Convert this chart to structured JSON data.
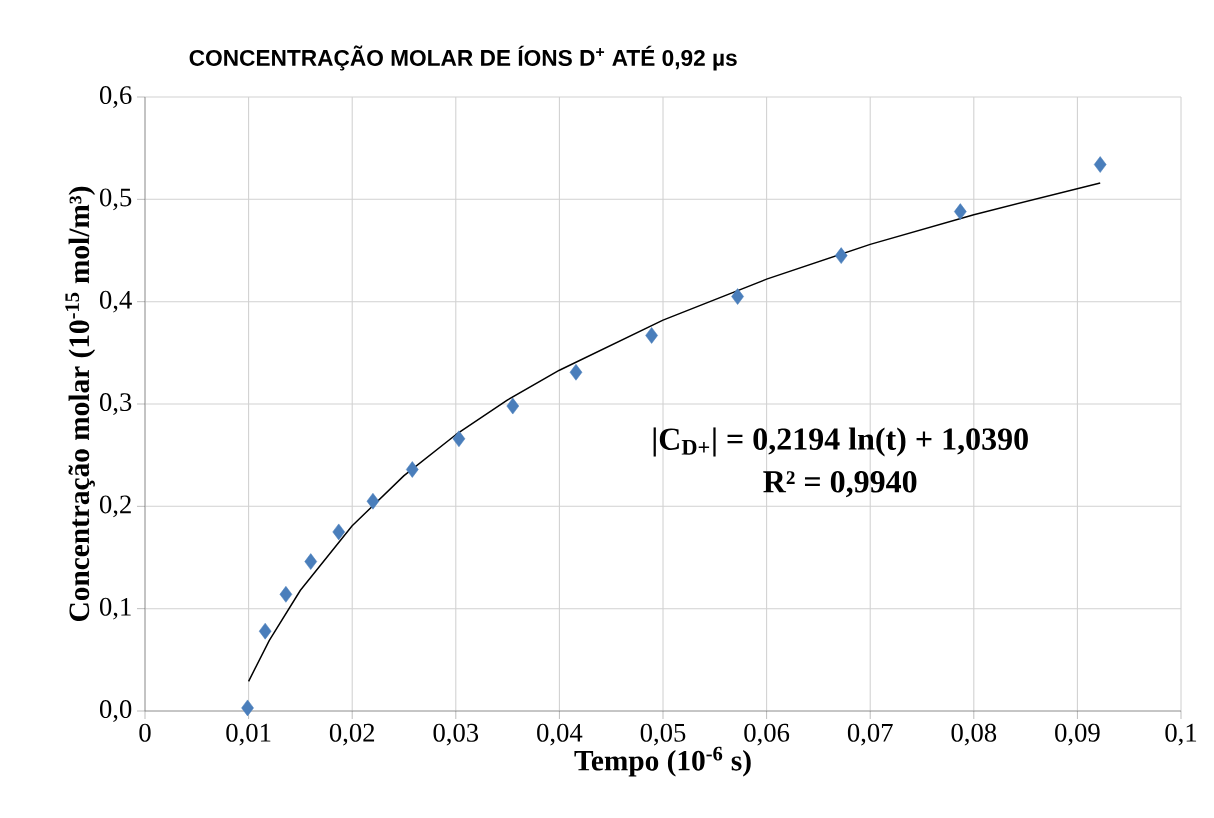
{
  "chart_data": {
    "type": "scatter",
    "title": "CONCENTRAÇÃO MOLAR DE ÍONS D$^{+}$ ATÉ 0,92 µs",
    "xlabel": "Tempo (10$^{-6}$ s)",
    "ylabel": "Concentração molar (10$^{-15}$ mol/m³)",
    "annotations": [
      "|C$_{D+}$| = 0,2194 ln(t) + 1,0390",
      "R² = 0,9940"
    ],
    "series": [
      {
        "color": "#4a7ebb",
        "marker": "diamond",
        "x": [
          0.0099,
          0.0116,
          0.0136,
          0.016,
          0.0187,
          0.022,
          0.0258,
          0.0303,
          0.0355,
          0.0416,
          0.0489,
          0.0572,
          0.0672,
          0.0787,
          0.0922
        ],
        "values": [
          0.003,
          0.078,
          0.114,
          0.146,
          0.175,
          0.205,
          0.236,
          0.266,
          0.298,
          0.331,
          0.367,
          0.405,
          0.445,
          0.488,
          0.534
        ]
      },
      {
        "type": "line",
        "color": "#000000",
        "marker": "none",
        "x": [
          0.01,
          0.012,
          0.015,
          0.02,
          0.025,
          0.03,
          0.035,
          0.04,
          0.05,
          0.06,
          0.07,
          0.08,
          0.0922
        ],
        "values": [
          0.029,
          0.069,
          0.118,
          0.181,
          0.23,
          0.27,
          0.304,
          0.333,
          0.382,
          0.422,
          0.456,
          0.485,
          0.516
        ]
      }
    ],
    "xlim": [
      0,
      0.1
    ],
    "ylim": [
      0,
      0.6
    ],
    "xticks": [
      0,
      {
        "value": 0.01,
        "label": "0,01"
      },
      {
        "value": 0.02,
        "label": "0,02"
      },
      {
        "value": 0.03,
        "label": "0,03"
      },
      {
        "value": 0.04,
        "label": "0,04"
      },
      {
        "value": 0.05,
        "label": "0,05"
      },
      {
        "value": 0.06,
        "label": "0,06"
      },
      {
        "value": 0.07,
        "label": "0,07"
      },
      {
        "value": 0.08,
        "label": "0,08"
      },
      {
        "value": 0.09,
        "label": "0,09"
      },
      {
        "value": 0.1,
        "label": "0,1"
      }
    ],
    "yticks": [
      {
        "value": 0,
        "label": "0,0"
      },
      {
        "value": 0.1,
        "label": "0,1"
      },
      {
        "value": 0.2,
        "label": "0,2"
      },
      {
        "value": 0.3,
        "label": "0,3"
      },
      {
        "value": 0.4,
        "label": "0,4"
      },
      {
        "value": 0.5,
        "label": "0,5"
      },
      {
        "value": 0.6,
        "label": "0,6"
      }
    ],
    "grid": true
  }
}
